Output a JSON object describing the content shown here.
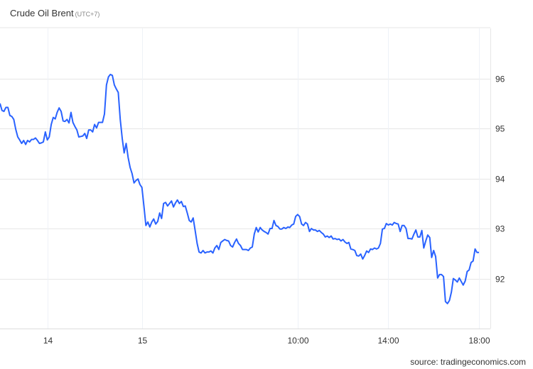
{
  "header": {
    "title": "Crude Oil Brent",
    "timezone": "(UTC+7)"
  },
  "source": "source: tradingeconomics.com",
  "colors": {
    "line": "#2962ff",
    "grid": "#e6e6e6",
    "text": "#333333"
  },
  "chart_data": {
    "type": "line",
    "title": "Crude Oil Brent",
    "xlabel": "",
    "ylabel": "",
    "ylim": [
      91,
      97
    ],
    "grid": true,
    "y_axis_position": "right",
    "y_ticks": [
      92,
      93,
      94,
      95,
      96
    ],
    "x_ticks": [
      {
        "label": "14",
        "index": 24
      },
      {
        "label": "15",
        "index": 72
      },
      {
        "label": "10:00",
        "index": 151
      },
      {
        "label": "14:00",
        "index": 197
      },
      {
        "label": "18:00",
        "index": 243
      }
    ],
    "values": [
      95.5,
      95.36,
      95.34,
      95.42,
      95.42,
      95.26,
      95.24,
      95.18,
      94.98,
      94.83,
      94.77,
      94.7,
      94.76,
      94.68,
      94.76,
      94.73,
      94.78,
      94.78,
      94.81,
      94.76,
      94.7,
      94.71,
      94.73,
      94.93,
      94.77,
      94.83,
      95.08,
      95.22,
      95.19,
      95.32,
      95.41,
      95.34,
      95.15,
      95.14,
      95.18,
      95.11,
      95.32,
      95.12,
      95.04,
      94.97,
      94.83,
      94.84,
      94.85,
      94.9,
      94.8,
      94.97,
      94.97,
      94.93,
      95.08,
      95.01,
      95.12,
      95.12,
      95.12,
      95.29,
      95.87,
      96.03,
      96.08,
      96.06,
      95.87,
      95.79,
      95.72,
      95.18,
      94.8,
      94.51,
      94.7,
      94.42,
      94.22,
      94.1,
      93.91,
      93.96,
      93.99,
      93.88,
      93.82,
      93.45,
      93.06,
      93.13,
      93.03,
      93.13,
      93.19,
      93.09,
      93.14,
      93.31,
      93.2,
      93.5,
      93.52,
      93.45,
      93.5,
      93.55,
      93.43,
      93.51,
      93.57,
      93.5,
      93.54,
      93.44,
      93.45,
      93.31,
      93.16,
      93.13,
      93.21,
      92.96,
      92.7,
      92.53,
      92.51,
      92.56,
      92.51,
      92.53,
      92.53,
      92.55,
      92.51,
      92.61,
      92.66,
      92.58,
      92.72,
      92.75,
      92.78,
      92.76,
      92.75,
      92.66,
      92.63,
      92.72,
      92.79,
      92.7,
      92.66,
      92.58,
      92.58,
      92.58,
      92.56,
      92.61,
      92.63,
      92.89,
      93.02,
      92.93,
      93.02,
      92.97,
      92.94,
      92.92,
      92.89,
      93.0,
      93.0,
      93.16,
      93.06,
      93.04,
      92.99,
      92.99,
      93.02,
      93.0,
      93.03,
      93.02,
      93.07,
      93.09,
      93.24,
      93.28,
      93.24,
      93.09,
      93.06,
      93.12,
      93.09,
      92.94,
      93.0,
      92.97,
      92.97,
      92.94,
      92.96,
      92.92,
      92.89,
      92.83,
      92.85,
      92.82,
      92.85,
      92.79,
      92.8,
      92.78,
      92.79,
      92.75,
      92.78,
      92.73,
      92.7,
      92.72,
      92.59,
      92.58,
      92.56,
      92.46,
      92.45,
      92.49,
      92.39,
      92.46,
      92.55,
      92.52,
      92.59,
      92.58,
      92.61,
      92.59,
      92.61,
      92.7,
      92.99,
      93.0,
      93.1,
      93.07,
      93.09,
      93.07,
      93.12,
      93.1,
      93.09,
      92.94,
      93.06,
      93.06,
      93.0,
      92.8,
      92.8,
      92.79,
      92.89,
      92.97,
      92.83,
      92.83,
      92.96,
      92.61,
      92.75,
      92.87,
      92.82,
      92.42,
      92.56,
      92.44,
      92.01,
      92.08,
      92.08,
      92.04,
      91.54,
      91.5,
      91.56,
      91.73,
      92.0,
      91.97,
      91.93,
      92.01,
      91.94,
      91.87,
      91.95,
      92.14,
      92.17,
      92.32,
      92.35,
      92.59,
      92.52,
      92.52
    ]
  }
}
